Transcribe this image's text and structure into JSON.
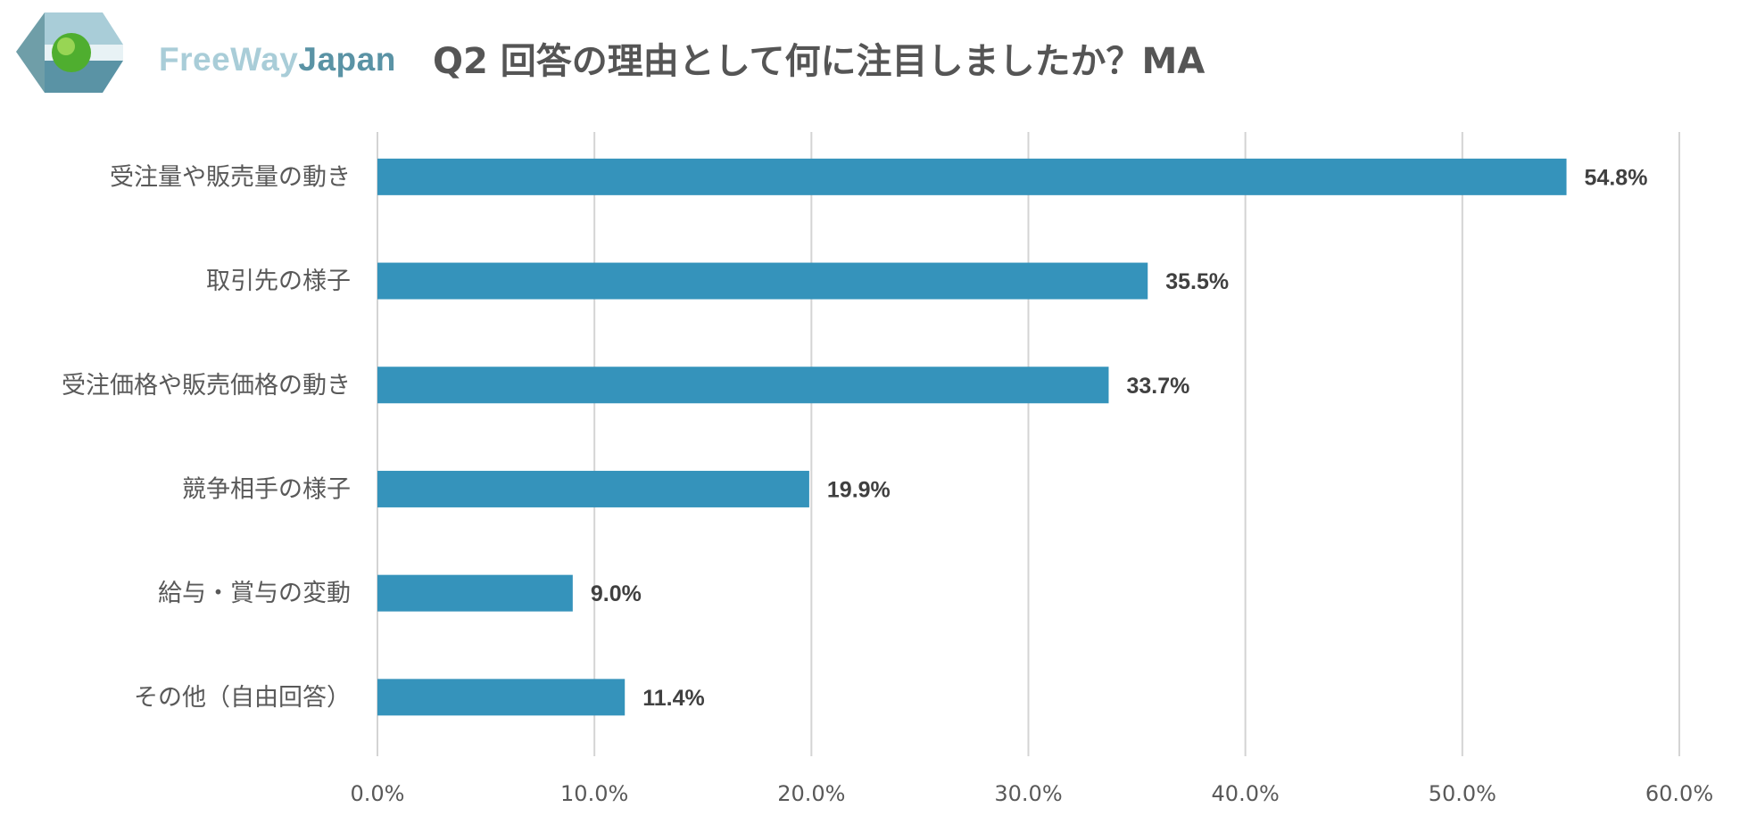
{
  "logo": {
    "text_free_way": "FreeWay",
    "text_japan": "Japan",
    "icon": "freewayjapan-logo-icon"
  },
  "title": "Q2 回答の理由として何に注目しましたか？MA",
  "colors": {
    "bar": "#3593bb",
    "grid": "#d4d4d4",
    "category_text": "#595959",
    "value_text": "#404040",
    "title": "#555555",
    "logo_light": "#a9cdd8",
    "logo_dark": "#5a93a5"
  },
  "chart_data": {
    "type": "bar",
    "orientation": "horizontal",
    "title": "Q2 回答の理由として何に注目しましたか？MA",
    "categories": [
      "受注量や販売量の動き",
      "取引先の様子",
      "受注価格や販売価格の動き",
      "競争相手の様子",
      "給与・賞与の変動",
      "その他（自由回答）"
    ],
    "values": [
      54.8,
      35.5,
      33.7,
      19.9,
      9.0,
      11.4
    ],
    "value_labels": [
      "54.8%",
      "35.5%",
      "33.7%",
      "19.9%",
      "9.0%",
      "11.4%"
    ],
    "xlim": [
      0,
      60
    ],
    "xticks": [
      0,
      10,
      20,
      30,
      40,
      50,
      60
    ],
    "xtick_labels": [
      "0.0%",
      "10.0%",
      "20.0%",
      "30.0%",
      "40.0%",
      "50.0%",
      "60.0%"
    ],
    "xlabel": "",
    "ylabel": "",
    "grid": true,
    "legend": "none"
  }
}
